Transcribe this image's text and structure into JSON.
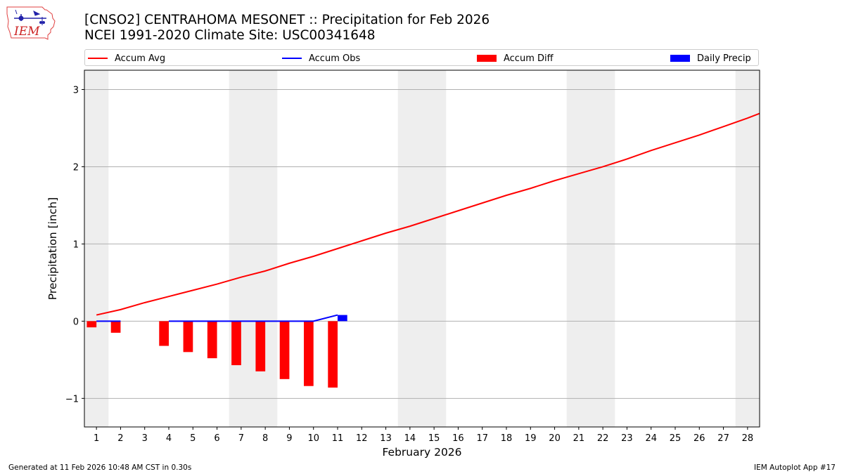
{
  "header": {
    "logo_text": "IEM",
    "title_line1": "[CNSO2] CENTRAHOMA MESONET :: Precipitation for Feb 2026",
    "title_line2": "NCEI 1991-2020 Climate Site: USC00341648"
  },
  "colors": {
    "avg": "#ff0000",
    "obs": "#0000ff",
    "diff": "#ff0000",
    "daily": "#0000ff",
    "weekend": "#eeeeee",
    "grid": "#b0b0b0"
  },
  "footer": {
    "left": "Generated at 11 Feb 2026 10:48 AM CST in 0.30s",
    "right": "IEM Autoplot App #17"
  },
  "chart_data": {
    "type": "bar",
    "xlabel": "February 2026",
    "ylabel": "Precipitation [inch]",
    "xlim": [
      0.5,
      28.5
    ],
    "ylim": [
      -1.37,
      3.25
    ],
    "yticks": [
      -1,
      0,
      1,
      2,
      3
    ],
    "ytick_labels": [
      "−1",
      "0",
      "1",
      "2",
      "3"
    ],
    "days": [
      1,
      2,
      3,
      4,
      5,
      6,
      7,
      8,
      9,
      10,
      11,
      12,
      13,
      14,
      15,
      16,
      17,
      18,
      19,
      20,
      21,
      22,
      23,
      24,
      25,
      26,
      27,
      28
    ],
    "weekend_spans": [
      [
        0.5,
        1.5
      ],
      [
        6.5,
        8.5
      ],
      [
        13.5,
        15.5
      ],
      [
        20.5,
        22.5
      ],
      [
        27.5,
        28.5
      ]
    ],
    "grid": "horizontal",
    "legend": {
      "placement": "top",
      "entries": [
        "Accum Avg",
        "Accum Obs",
        "Accum Diff",
        "Daily Precip"
      ]
    },
    "series": [
      {
        "name": "Accum Avg",
        "type": "line",
        "x": [
          1,
          2,
          3,
          4,
          5,
          6,
          7,
          8,
          9,
          10,
          11,
          12,
          13,
          14,
          15,
          16,
          17,
          18,
          19,
          20,
          21,
          22,
          23,
          24,
          25,
          26,
          27,
          28,
          28.5
        ],
        "values": [
          0.08,
          0.15,
          0.24,
          0.32,
          0.4,
          0.48,
          0.57,
          0.65,
          0.75,
          0.84,
          0.94,
          1.04,
          1.14,
          1.23,
          1.33,
          1.43,
          1.53,
          1.63,
          1.72,
          1.82,
          1.91,
          2.0,
          2.1,
          2.21,
          2.31,
          2.41,
          2.52,
          2.63,
          2.69
        ]
      },
      {
        "name": "Accum Obs",
        "type": "line",
        "x": [
          1,
          2,
          4,
          5,
          6,
          7,
          8,
          9,
          10,
          11
        ],
        "values": [
          0,
          0,
          0,
          0,
          0,
          0,
          0,
          0,
          0,
          0.08
        ],
        "segments": [
          [
            1,
            2
          ],
          [
            4,
            5,
            6,
            7,
            8,
            9,
            10,
            11
          ]
        ]
      },
      {
        "name": "Accum Diff",
        "type": "bar",
        "x": [
          1,
          2,
          4,
          5,
          6,
          7,
          8,
          9,
          10,
          11
        ],
        "values": [
          -0.08,
          -0.15,
          -0.32,
          -0.4,
          -0.48,
          -0.57,
          -0.65,
          -0.75,
          -0.84,
          -0.86
        ]
      },
      {
        "name": "Daily Precip",
        "type": "bar",
        "x": [
          11
        ],
        "values": [
          0.08
        ]
      }
    ]
  }
}
